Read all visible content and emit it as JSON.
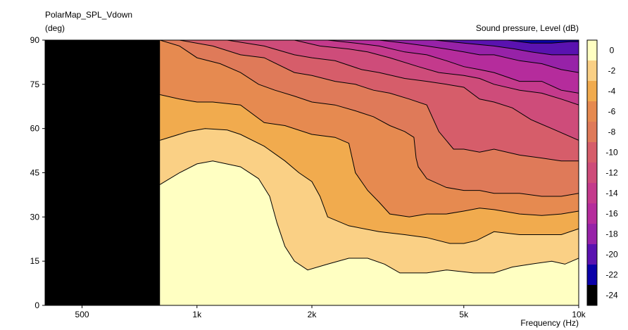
{
  "chart_data": {
    "type": "heatmap",
    "title": "PolarMap_SPL_Vdown",
    "ylabel": "(deg)",
    "xlabel": "Frequency  (Hz)",
    "colorbar_label": "Sound pressure, Level  (dB)",
    "x_scale": "log",
    "xlim": [
      400,
      10000
    ],
    "ylim": [
      0,
      90
    ],
    "x_ticks": [
      {
        "value": 500,
        "label": "500"
      },
      {
        "value": 1000,
        "label": "1k"
      },
      {
        "value": 2000,
        "label": "2k"
      },
      {
        "value": 5000,
        "label": "5k"
      },
      {
        "value": 10000,
        "label": "10k"
      }
    ],
    "y_ticks": [
      0,
      15,
      30,
      45,
      60,
      75,
      90
    ],
    "no_data_below_hz": 800,
    "levels": [
      {
        "label": "0",
        "color": "#ffffc2"
      },
      {
        "label": "-2",
        "color": "#fad085"
      },
      {
        "label": "-4",
        "color": "#f1ab4e"
      },
      {
        "label": "-6",
        "color": "#e68a50"
      },
      {
        "label": "-8",
        "color": "#df7a59"
      },
      {
        "label": "-10",
        "color": "#d65d6a"
      },
      {
        "label": "-12",
        "color": "#ce4c7a"
      },
      {
        "label": "-14",
        "color": "#c43a8c"
      },
      {
        "label": "-16",
        "color": "#b52c9c"
      },
      {
        "label": "-18",
        "color": "#9722a8"
      },
      {
        "label": "-20",
        "color": "#5a12b0"
      },
      {
        "label": "-22",
        "color": "#0a00a8"
      },
      {
        "label": "-24",
        "color": "#000000"
      }
    ],
    "contours": [
      {
        "level": "-2",
        "points": [
          [
            800,
            41
          ],
          [
            900,
            45
          ],
          [
            1000,
            48
          ],
          [
            1100,
            49
          ],
          [
            1300,
            47
          ],
          [
            1450,
            43
          ],
          [
            1550,
            37
          ],
          [
            1620,
            28
          ],
          [
            1700,
            20
          ],
          [
            1800,
            15
          ],
          [
            1950,
            12
          ],
          [
            2200,
            14
          ],
          [
            2500,
            16
          ],
          [
            2800,
            16
          ],
          [
            3100,
            14
          ],
          [
            3400,
            11
          ],
          [
            4000,
            11
          ],
          [
            4500,
            12
          ],
          [
            5300,
            11
          ],
          [
            6000,
            11
          ],
          [
            6700,
            13
          ],
          [
            7500,
            14
          ],
          [
            8500,
            15
          ],
          [
            9200,
            14
          ],
          [
            10000,
            16
          ]
        ]
      },
      {
        "level": "-4",
        "points": [
          [
            800,
            56
          ],
          [
            950,
            59
          ],
          [
            1050,
            60
          ],
          [
            1200,
            59.5
          ],
          [
            1300,
            58
          ],
          [
            1500,
            54
          ],
          [
            1700,
            49
          ],
          [
            1850,
            45
          ],
          [
            2000,
            42
          ],
          [
            2100,
            37
          ],
          [
            2200,
            30
          ],
          [
            2500,
            27
          ],
          [
            3000,
            25
          ],
          [
            3500,
            24
          ],
          [
            4000,
            23
          ],
          [
            4600,
            21
          ],
          [
            5000,
            21
          ],
          [
            5400,
            22
          ],
          [
            6000,
            25
          ],
          [
            7000,
            24
          ],
          [
            8000,
            24
          ],
          [
            9000,
            24
          ],
          [
            10000,
            26
          ]
        ]
      },
      {
        "level": "-6",
        "points": [
          [
            800,
            71.5
          ],
          [
            900,
            70
          ],
          [
            1000,
            69
          ],
          [
            1100,
            69
          ],
          [
            1300,
            68
          ],
          [
            1500,
            62
          ],
          [
            1700,
            61
          ],
          [
            2000,
            58
          ],
          [
            2300,
            57
          ],
          [
            2500,
            55
          ],
          [
            2600,
            45
          ],
          [
            2800,
            39
          ],
          [
            3000,
            35
          ],
          [
            3200,
            31
          ],
          [
            3600,
            30
          ],
          [
            4000,
            31
          ],
          [
            4500,
            31
          ],
          [
            5000,
            32
          ],
          [
            5500,
            33
          ],
          [
            6000,
            32.5
          ],
          [
            7000,
            31
          ],
          [
            8000,
            30.5
          ],
          [
            9000,
            31
          ],
          [
            10000,
            32
          ]
        ]
      },
      {
        "level": "-8",
        "points": [
          [
            800,
            90
          ],
          [
            900,
            88
          ],
          [
            1000,
            84
          ],
          [
            1150,
            82
          ],
          [
            1300,
            79
          ],
          [
            1450,
            75
          ],
          [
            1600,
            73
          ],
          [
            1800,
            71
          ],
          [
            2000,
            69
          ],
          [
            2300,
            68
          ],
          [
            2600,
            66
          ],
          [
            2900,
            64
          ],
          [
            3200,
            61
          ],
          [
            3500,
            59
          ],
          [
            3700,
            57
          ],
          [
            3750,
            50
          ],
          [
            3800,
            47
          ],
          [
            4000,
            43
          ],
          [
            4500,
            40
          ],
          [
            5000,
            39
          ],
          [
            5500,
            39
          ],
          [
            6000,
            38
          ],
          [
            7000,
            38
          ],
          [
            8000,
            37
          ],
          [
            9000,
            37
          ],
          [
            10000,
            38
          ]
        ]
      },
      {
        "level": "-10",
        "points": [
          [
            900,
            90
          ],
          [
            1100,
            88
          ],
          [
            1300,
            85
          ],
          [
            1500,
            84
          ],
          [
            1800,
            79
          ],
          [
            2000,
            78
          ],
          [
            2300,
            76
          ],
          [
            2600,
            75
          ],
          [
            2900,
            73
          ],
          [
            3200,
            72
          ],
          [
            3600,
            70
          ],
          [
            4000,
            68
          ],
          [
            4300,
            59
          ],
          [
            4700,
            53
          ],
          [
            5000,
            53
          ],
          [
            5500,
            52
          ],
          [
            6000,
            53
          ],
          [
            7000,
            51
          ],
          [
            8000,
            50
          ],
          [
            9000,
            49
          ],
          [
            10000,
            49
          ]
        ]
      },
      {
        "level": "-12",
        "points": [
          [
            1200,
            90
          ],
          [
            1500,
            88
          ],
          [
            1800,
            85
          ],
          [
            2000,
            84
          ],
          [
            2300,
            83
          ],
          [
            2700,
            80
          ],
          [
            3000,
            79
          ],
          [
            3500,
            77
          ],
          [
            4000,
            76
          ],
          [
            4500,
            75
          ],
          [
            5000,
            74
          ],
          [
            5500,
            70
          ],
          [
            6000,
            69
          ],
          [
            6700,
            67
          ],
          [
            7500,
            63
          ],
          [
            8500,
            60
          ],
          [
            10000,
            56
          ]
        ]
      },
      {
        "level": "-14",
        "points": [
          [
            1800,
            90
          ],
          [
            2100,
            88
          ],
          [
            2500,
            87
          ],
          [
            2800,
            86
          ],
          [
            3200,
            84
          ],
          [
            3800,
            81
          ],
          [
            4300,
            79
          ],
          [
            5000,
            78
          ],
          [
            5500,
            77
          ],
          [
            6000,
            75
          ],
          [
            7000,
            73
          ],
          [
            8000,
            72
          ],
          [
            9000,
            70
          ],
          [
            10000,
            68
          ]
        ]
      },
      {
        "level": "-16",
        "points": [
          [
            2200,
            90
          ],
          [
            2600,
            89
          ],
          [
            3000,
            88
          ],
          [
            3500,
            86
          ],
          [
            4000,
            85
          ],
          [
            4500,
            83
          ],
          [
            5000,
            81
          ],
          [
            5500,
            80
          ],
          [
            6000,
            79
          ],
          [
            7000,
            76
          ],
          [
            8000,
            76
          ],
          [
            9000,
            73
          ],
          [
            10000,
            72
          ]
        ]
      },
      {
        "level": "-18",
        "points": [
          [
            3000,
            90
          ],
          [
            3500,
            89
          ],
          [
            4000,
            88
          ],
          [
            4500,
            87
          ],
          [
            5000,
            86
          ],
          [
            5500,
            85
          ],
          [
            6000,
            85
          ],
          [
            7000,
            83
          ],
          [
            8000,
            82
          ],
          [
            9000,
            80
          ],
          [
            10000,
            79
          ]
        ]
      },
      {
        "level": "-20",
        "points": [
          [
            4200,
            90
          ],
          [
            5000,
            89
          ],
          [
            6000,
            88
          ],
          [
            6800,
            87
          ],
          [
            7500,
            86
          ],
          [
            8500,
            85
          ],
          [
            10000,
            85
          ]
        ]
      },
      {
        "level": "-22",
        "points": [
          [
            5500,
            90
          ],
          [
            6500,
            90
          ],
          [
            7500,
            89
          ],
          [
            8500,
            89
          ],
          [
            9500,
            89.5
          ],
          [
            10000,
            89.5
          ]
        ]
      }
    ]
  }
}
